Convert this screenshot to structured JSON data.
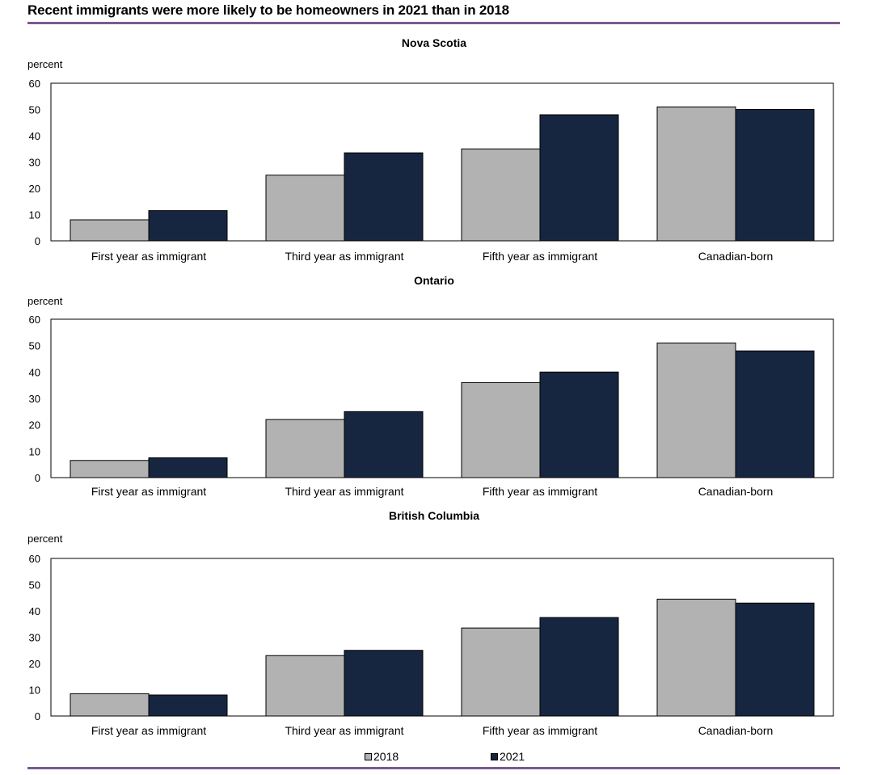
{
  "title": "Recent immigrants were more likely to be homeowners in 2021 than in 2018",
  "legend": [
    {
      "label": "2018",
      "color": "#b2b2b2"
    },
    {
      "label": "2021",
      "color": "#172640"
    }
  ],
  "chart_data": [
    {
      "type": "bar",
      "title": "Nova Scotia",
      "ylabel": "percent",
      "ylim": [
        0,
        60
      ],
      "yticks": [
        0,
        10,
        20,
        30,
        40,
        50,
        60
      ],
      "categories": [
        "First year as immigrant",
        "Third year as immigrant",
        "Fifth year as immigrant",
        "Canadian-born"
      ],
      "series": [
        {
          "name": "2018",
          "values": [
            8,
            25,
            35,
            51
          ]
        },
        {
          "name": "2021",
          "values": [
            11.5,
            33.5,
            48,
            50
          ]
        }
      ]
    },
    {
      "type": "bar",
      "title": "Ontario",
      "ylabel": "percent",
      "ylim": [
        0,
        60
      ],
      "yticks": [
        0,
        10,
        20,
        30,
        40,
        50,
        60
      ],
      "categories": [
        "First year as immigrant",
        "Third year as immigrant",
        "Fifth year as immigrant",
        "Canadian-born"
      ],
      "series": [
        {
          "name": "2018",
          "values": [
            6.5,
            22,
            36,
            51
          ]
        },
        {
          "name": "2021",
          "values": [
            7.5,
            25,
            40,
            48
          ]
        }
      ]
    },
    {
      "type": "bar",
      "title": "British Columbia",
      "ylabel": "percent",
      "ylim": [
        0,
        60
      ],
      "yticks": [
        0,
        10,
        20,
        30,
        40,
        50,
        60
      ],
      "categories": [
        "First year as immigrant",
        "Third year as immigrant",
        "Fifth year as immigrant",
        "Canadian-born"
      ],
      "series": [
        {
          "name": "2018",
          "values": [
            8.5,
            23,
            33.5,
            44.5
          ]
        },
        {
          "name": "2021",
          "values": [
            8,
            25,
            37.5,
            43
          ]
        }
      ]
    }
  ]
}
